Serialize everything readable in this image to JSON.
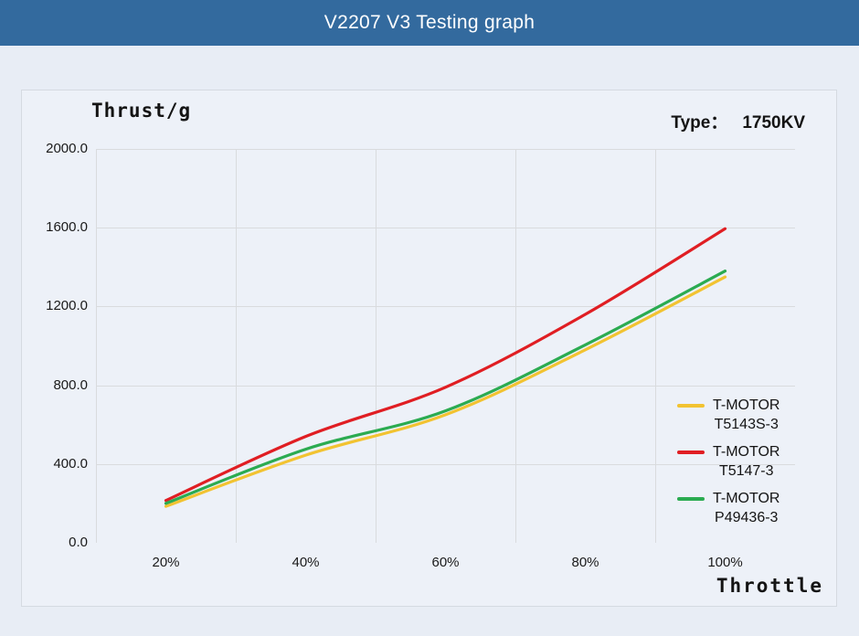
{
  "header": {
    "title": "V2207 V3 Testing graph"
  },
  "info": {
    "type_label": "Type：",
    "type_value": "1750KV"
  },
  "chart_data": {
    "type": "line",
    "title": "V2207 V3 Testing graph",
    "ylabel": "Thrust/g",
    "xlabel": "Throttle",
    "categories": [
      "20%",
      "40%",
      "60%",
      "80%",
      "100%"
    ],
    "series": [
      {
        "name": "T-MOTOR T5143S-3",
        "legend_lines": [
          "T-MOTOR",
          "T5143S-3"
        ],
        "color": "#F2C331",
        "values": [
          185,
          445,
          650,
          980,
          1350
        ]
      },
      {
        "name": "T-MOTOR T5147-3",
        "legend_lines": [
          "T-MOTOR",
          "T5147-3"
        ],
        "color": "#E01E23",
        "values": [
          215,
          540,
          790,
          1160,
          1595
        ]
      },
      {
        "name": "T-MOTOR P49436-3",
        "legend_lines": [
          "T-MOTOR",
          "P49436-3"
        ],
        "color": "#2BAB51",
        "values": [
          200,
          475,
          670,
          1005,
          1380
        ]
      }
    ],
    "yticks": [
      "2000.0",
      "1600.0",
      "1200.0",
      "800.0",
      "400.0",
      "0.0"
    ],
    "ylim": [
      0,
      2000
    ],
    "grid": true,
    "legend_position": "inside-right"
  },
  "colors": {
    "header_bg": "#336A9E",
    "page_bg": "#E8EDF5",
    "card_bg": "#EDF1F8",
    "grid": "#D9DBDE"
  }
}
